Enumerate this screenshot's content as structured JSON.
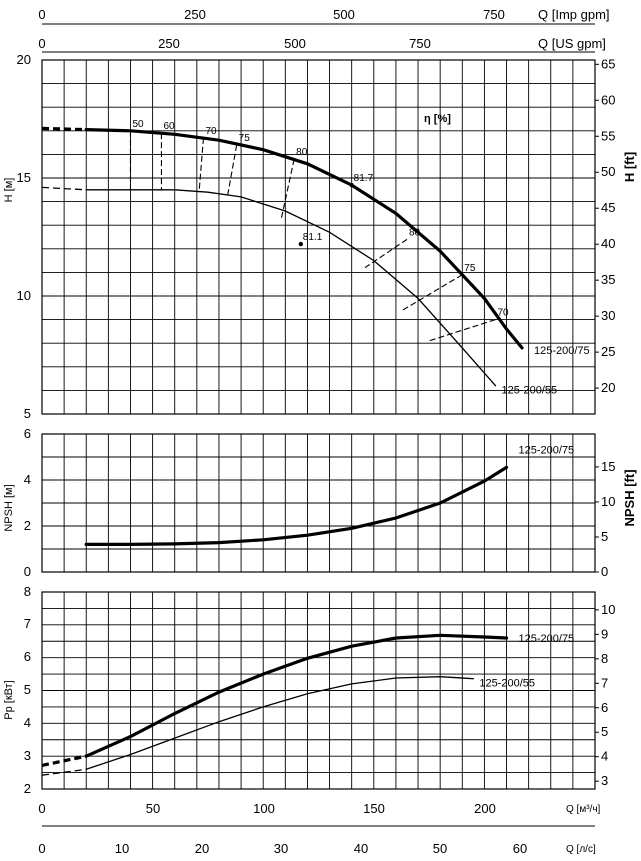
{
  "top_axes": {
    "imp_label": "Q [Imp gpm]",
    "imp_ticks": [
      "0",
      "250",
      "500",
      "750"
    ],
    "us_label": "Q [US gpm]",
    "us_ticks": [
      "0",
      "250",
      "500",
      "750"
    ]
  },
  "bottom_axes": {
    "m3h_label": "Q [м³/ч]",
    "m3h_ticks": [
      "0",
      "50",
      "100",
      "150",
      "200"
    ],
    "ls_label": "Q [л/с]",
    "ls_ticks": [
      "0",
      "10",
      "20",
      "30",
      "40",
      "50",
      "60"
    ]
  },
  "panel_labels": {
    "head_left": "H [м]",
    "head_right": "H [ft]",
    "eta_label": "η [%]",
    "npsh_left": "NPSH [м]",
    "npsh_right": "NPSH [ft]",
    "power_left": "Pp [кВт]"
  },
  "chart_data": [
    {
      "type": "line",
      "panel": "head",
      "xlabel": "Q [м³/ч]",
      "ylabel": "H [м]",
      "y2label": "H [ft]",
      "xlim": [
        0,
        250
      ],
      "ylim": [
        5,
        20
      ],
      "y2lim": [
        16.4,
        65.6
      ],
      "y_ticks": [
        "5",
        "10",
        "15",
        "20"
      ],
      "y2_ticks": [
        "20",
        "25",
        "30",
        "35",
        "40",
        "45",
        "50",
        "55",
        "60",
        "65"
      ],
      "grid": true,
      "series": [
        {
          "name": "125-200/75",
          "dashed_start": [
            [
              0,
              17.1
            ],
            [
              20,
              17.05
            ]
          ],
          "values": [
            [
              20,
              17.05
            ],
            [
              40,
              17.0
            ],
            [
              60,
              16.85
            ],
            [
              80,
              16.6
            ],
            [
              100,
              16.2
            ],
            [
              120,
              15.6
            ],
            [
              140,
              14.7
            ],
            [
              160,
              13.5
            ],
            [
              180,
              11.9
            ],
            [
              200,
              9.9
            ],
            [
              210,
              8.6
            ],
            [
              217,
              7.8
            ]
          ]
        },
        {
          "name": "125-200/55",
          "dashed_start": [
            [
              0,
              14.6
            ],
            [
              20,
              14.5
            ]
          ],
          "values": [
            [
              20,
              14.5
            ],
            [
              40,
              14.5
            ],
            [
              60,
              14.5
            ],
            [
              75,
              14.4
            ],
            [
              90,
              14.2
            ],
            [
              110,
              13.6
            ],
            [
              130,
              12.7
            ],
            [
              150,
              11.5
            ],
            [
              170,
              9.9
            ],
            [
              190,
              7.8
            ],
            [
              205,
              6.2
            ]
          ]
        }
      ],
      "efficiency_markers": [
        {
          "label": "50",
          "points": [
            [
              40,
              17.0
            ],
            [
              40,
              14.5
            ]
          ]
        },
        {
          "label": "60",
          "points": [
            [
              54,
              16.9
            ],
            [
              54,
              14.5
            ]
          ]
        },
        {
          "label": "70",
          "points": [
            [
              73,
              16.7
            ],
            [
              71,
              14.4
            ]
          ]
        },
        {
          "label": "75",
          "points": [
            [
              88,
              16.4
            ],
            [
              84,
              14.3
            ]
          ]
        },
        {
          "label": "80",
          "points": [
            [
              114,
              15.8
            ],
            [
              108,
              13.2
            ]
          ]
        },
        {
          "label": "81.7",
          "points": [
            [
              140,
              14.7
            ],
            [
              140,
              14.7
            ]
          ]
        },
        {
          "label": "81.1",
          "points": [
            [
              117,
              12.2
            ],
            [
              117,
              12.2
            ]
          ]
        },
        {
          "label": "80",
          "points": [
            [
              165,
              12.4
            ],
            [
              146,
              11.2
            ]
          ]
        },
        {
          "label": "75",
          "points": [
            [
              190,
              10.9
            ],
            [
              163,
              9.4
            ]
          ]
        },
        {
          "label": "70",
          "points": [
            [
              205,
              9.0
            ],
            [
              175,
              8.1
            ]
          ]
        }
      ]
    },
    {
      "type": "line",
      "panel": "npsh",
      "xlabel": "Q [м³/ч]",
      "ylabel": "NPSH [м]",
      "y2label": "NPSH [ft]",
      "xlim": [
        0,
        250
      ],
      "ylim": [
        0,
        6
      ],
      "y2lim": [
        0,
        19.7
      ],
      "y_ticks": [
        "0",
        "2",
        "4",
        "6"
      ],
      "y2_ticks": [
        "0",
        "5",
        "10",
        "15"
      ],
      "grid": true,
      "series": [
        {
          "name": "125-200/75",
          "values": [
            [
              20,
              1.2
            ],
            [
              40,
              1.2
            ],
            [
              60,
              1.22
            ],
            [
              80,
              1.28
            ],
            [
              100,
              1.4
            ],
            [
              120,
              1.6
            ],
            [
              140,
              1.9
            ],
            [
              160,
              2.35
            ],
            [
              180,
              3.0
            ],
            [
              200,
              3.95
            ],
            [
              210,
              4.55
            ]
          ]
        }
      ]
    },
    {
      "type": "line",
      "panel": "power",
      "xlabel": "Q [м³/ч]",
      "ylabel": "Pp [кВт]",
      "xlim": [
        0,
        250
      ],
      "ylim": [
        2,
        8
      ],
      "y2lim": [
        2.68,
        10.73
      ],
      "y_ticks": [
        "2",
        "3",
        "4",
        "5",
        "6",
        "7",
        "8"
      ],
      "y2_ticks": [
        "3",
        "4",
        "5",
        "6",
        "7",
        "8",
        "9",
        "10"
      ],
      "grid": true,
      "series": [
        {
          "name": "125-200/75",
          "dashed_start": [
            [
              0,
              2.72
            ],
            [
              20,
              3.0
            ]
          ],
          "values": [
            [
              20,
              3.0
            ],
            [
              40,
              3.6
            ],
            [
              60,
              4.3
            ],
            [
              80,
              4.95
            ],
            [
              100,
              5.5
            ],
            [
              120,
              5.98
            ],
            [
              140,
              6.35
            ],
            [
              160,
              6.6
            ],
            [
              180,
              6.68
            ],
            [
              200,
              6.63
            ],
            [
              210,
              6.6
            ]
          ]
        },
        {
          "name": "125-200/55",
          "dashed_start": [
            [
              0,
              2.42
            ],
            [
              20,
              2.6
            ]
          ],
          "values": [
            [
              20,
              2.6
            ],
            [
              40,
              3.05
            ],
            [
              60,
              3.55
            ],
            [
              80,
              4.05
            ],
            [
              100,
              4.5
            ],
            [
              120,
              4.9
            ],
            [
              140,
              5.2
            ],
            [
              160,
              5.38
            ],
            [
              180,
              5.42
            ],
            [
              195,
              5.36
            ]
          ]
        }
      ]
    }
  ]
}
